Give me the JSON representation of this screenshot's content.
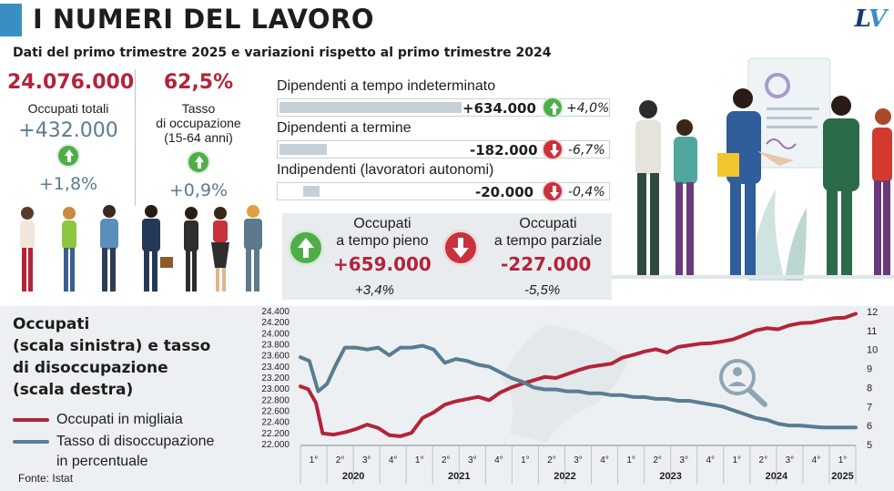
{
  "header": {
    "title": "I NUMERI DEL LAVORO",
    "logo_l": "L",
    "logo_v": "V",
    "subtitle": "Dati del primo trimestre 2025 e variazioni rispetto al primo trimestre 2024"
  },
  "kpis": {
    "occupati_totali": {
      "value": "24.076.000",
      "label": "Occupati totali",
      "delta": "+432.000",
      "pct": "+1,8%"
    },
    "tasso_occupazione": {
      "value": "62,5%",
      "label1": "Tasso",
      "label2": "di occupazione",
      "label3": "(15-64 anni)",
      "pct": "+0,9%"
    }
  },
  "categories": [
    {
      "label": "Dipendenti a tempo indeterminato",
      "value": "+634.000",
      "pct": "+4,0%",
      "direction": "up",
      "bar_fraction": 0.56
    },
    {
      "label": "Dipendenti a termine",
      "value": "-182.000",
      "pct": "-6,7%",
      "direction": "down",
      "bar_fraction": 0.14
    },
    {
      "label": "Indipendenti (lavoratori autonomi)",
      "value": "-20.000",
      "pct": "-0,4%",
      "direction": "down",
      "bar_fraction": 0.07
    }
  ],
  "boxes": [
    {
      "label1": "Occupati",
      "label2": "a tempo pieno",
      "value": "+659.000",
      "pct": "+3,4%",
      "direction": "up"
    },
    {
      "label1": "Occupati",
      "label2": "a tempo parziale",
      "value": "-227.000",
      "pct": "-5,5%",
      "direction": "down"
    }
  ],
  "chart": {
    "title_lines": [
      "Occupati",
      "(scala sinistra) e tasso",
      "di disoccupazione",
      "(scala destra)"
    ],
    "legend": [
      {
        "label": "Occupati in migliaia",
        "color": "#b3243a"
      },
      {
        "label1": "Tasso di disoccupazione",
        "label2": "in percentuale",
        "color": "#5a7c91"
      }
    ],
    "source": "Fonte: Istat"
  },
  "icons": [
    "person-icon",
    "handshake-icon",
    "search-people-icon",
    "up-arrow-icon",
    "down-arrow-icon",
    "document-icon"
  ],
  "colors": {
    "accent_blue": "#3a8fc2",
    "red": "#b3243a",
    "steel": "#5a7c91",
    "green": "#4fae4a",
    "band": "#edf0f2"
  },
  "chart_data": {
    "type": "line",
    "x_quarters": [
      "1°",
      "2°",
      "3°",
      "4°",
      "1°",
      "2°",
      "3°",
      "4°",
      "1°",
      "2°",
      "3°",
      "4°",
      "1°",
      "2°",
      "3°",
      "4°",
      "1°",
      "2°",
      "3°",
      "4°",
      "1°"
    ],
    "x_years": [
      {
        "year": "2020",
        "start": 0,
        "count": 4
      },
      {
        "year": "2021",
        "start": 4,
        "count": 4
      },
      {
        "year": "2022",
        "start": 8,
        "count": 4
      },
      {
        "year": "2023",
        "start": 12,
        "count": 4
      },
      {
        "year": "2024",
        "start": 16,
        "count": 4
      },
      {
        "year": "2025",
        "start": 20,
        "count": 1
      }
    ],
    "left_axis": {
      "ylim": [
        22000,
        24400
      ],
      "ticks": [
        "22.000",
        "22.200",
        "22.400",
        "22.600",
        "22.800",
        "23.000",
        "23.200",
        "23.400",
        "23.600",
        "23.800",
        "24.000",
        "24.200",
        "24.400"
      ]
    },
    "right_axis": {
      "ylim": [
        5,
        12
      ],
      "ticks": [
        "5",
        "6",
        "7",
        "8",
        "9",
        "10",
        "11",
        "12"
      ]
    },
    "series": [
      {
        "name": "Occupati in migliaia",
        "axis": "left",
        "points": [
          [
            0,
            23050
          ],
          [
            0.35,
            23000
          ],
          [
            0.7,
            22750
          ],
          [
            1,
            22200
          ],
          [
            1.5,
            22180
          ],
          [
            2,
            22220
          ],
          [
            2.5,
            22280
          ],
          [
            3,
            22360
          ],
          [
            3.5,
            22300
          ],
          [
            4,
            22170
          ],
          [
            4.5,
            22150
          ],
          [
            5,
            22210
          ],
          [
            5.5,
            22480
          ],
          [
            6,
            22580
          ],
          [
            6.5,
            22720
          ],
          [
            7,
            22780
          ],
          [
            7.5,
            22820
          ],
          [
            8,
            22860
          ],
          [
            8.5,
            22800
          ],
          [
            9,
            22940
          ],
          [
            9.5,
            23030
          ],
          [
            10,
            23100
          ],
          [
            10.5,
            23160
          ],
          [
            11,
            23220
          ],
          [
            11.5,
            23200
          ],
          [
            12,
            23270
          ],
          [
            12.5,
            23340
          ],
          [
            13,
            23400
          ],
          [
            13.5,
            23430
          ],
          [
            14,
            23460
          ],
          [
            14.5,
            23570
          ],
          [
            15,
            23620
          ],
          [
            15.5,
            23680
          ],
          [
            16,
            23720
          ],
          [
            16.5,
            23660
          ],
          [
            17,
            23760
          ],
          [
            17.5,
            23790
          ],
          [
            18,
            23820
          ],
          [
            18.5,
            23830
          ],
          [
            19,
            23860
          ],
          [
            19.5,
            23900
          ],
          [
            20,
            23980
          ],
          [
            20.5,
            24060
          ],
          [
            21,
            24100
          ],
          [
            21.5,
            24080
          ],
          [
            22,
            24150
          ],
          [
            22.5,
            24190
          ],
          [
            23,
            24200
          ],
          [
            23.5,
            24240
          ],
          [
            24,
            24280
          ],
          [
            24.5,
            24290
          ],
          [
            25,
            24360
          ]
        ]
      },
      {
        "name": "Tasso di disoccupazione in percentuale",
        "axis": "right",
        "points": [
          [
            0,
            9.6
          ],
          [
            0.4,
            9.4
          ],
          [
            0.8,
            7.8
          ],
          [
            1.2,
            8.2
          ],
          [
            1.6,
            9.2
          ],
          [
            2,
            10.1
          ],
          [
            2.5,
            10.1
          ],
          [
            3,
            10.0
          ],
          [
            3.5,
            10.1
          ],
          [
            4,
            9.7
          ],
          [
            4.5,
            10.1
          ],
          [
            5,
            10.1
          ],
          [
            5.5,
            10.2
          ],
          [
            6,
            10.0
          ],
          [
            6.5,
            9.3
          ],
          [
            7,
            9.5
          ],
          [
            7.5,
            9.4
          ],
          [
            8,
            9.2
          ],
          [
            8.5,
            9.1
          ],
          [
            9,
            8.8
          ],
          [
            9.5,
            8.5
          ],
          [
            10,
            8.3
          ],
          [
            10.5,
            8.0
          ],
          [
            11,
            7.9
          ],
          [
            11.5,
            7.9
          ],
          [
            12,
            7.8
          ],
          [
            12.5,
            7.8
          ],
          [
            13,
            7.7
          ],
          [
            13.5,
            7.7
          ],
          [
            14,
            7.6
          ],
          [
            14.5,
            7.6
          ],
          [
            15,
            7.5
          ],
          [
            15.5,
            7.5
          ],
          [
            16,
            7.4
          ],
          [
            16.5,
            7.4
          ],
          [
            17,
            7.3
          ],
          [
            17.5,
            7.3
          ],
          [
            18,
            7.2
          ],
          [
            18.5,
            7.1
          ],
          [
            19,
            7.0
          ],
          [
            19.5,
            6.8
          ],
          [
            20,
            6.6
          ],
          [
            20.5,
            6.4
          ],
          [
            21,
            6.3
          ],
          [
            21.5,
            6.1
          ],
          [
            22,
            6.0
          ],
          [
            22.5,
            6.0
          ],
          [
            23,
            5.95
          ],
          [
            23.5,
            5.9
          ],
          [
            24,
            5.9
          ],
          [
            24.5,
            5.9
          ],
          [
            25,
            5.9
          ]
        ]
      }
    ],
    "x_range": [
      0,
      25
    ],
    "grid": false,
    "legend_placement": "left"
  }
}
